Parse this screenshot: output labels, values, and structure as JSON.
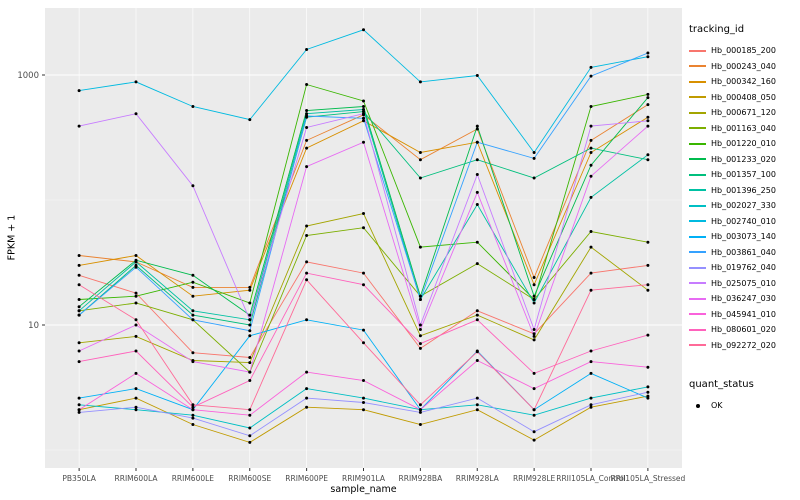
{
  "figure": {
    "background": "#FFFFFF",
    "panel_background": "#EBEBEB",
    "gridline_color": "#FFFFFF",
    "tick_color": "#333333",
    "tick_label_color": "#4D4D4D",
    "axis_title_color": "#000000"
  },
  "chart_data": {
    "type": "line",
    "title": "",
    "xlabel": "sample_name",
    "ylabel": "FPKM + 1",
    "y_scale": "log10",
    "y_ticks": [
      10,
      1000
    ],
    "y_tick_labels": [
      "10",
      "1000"
    ],
    "y_minor_gridlines": [
      1,
      100
    ],
    "y_log_domain": [
      -0.144,
      3.536
    ],
    "grid": true,
    "legend_position": "right",
    "point_color": "#000000",
    "legend": {
      "tracking_title": "tracking_id",
      "quant_title": "quant_status",
      "quant_items": [
        "OK"
      ]
    },
    "categories": [
      "PB350LA",
      "RRIM600LA",
      "RRIM600LE",
      "RRIM600SE",
      "RRIM600PE",
      "RRIM901LA",
      "RRIM928BA",
      "RRIM928LA",
      "RRIM928LE",
      "RRII105LA_Control",
      "RRII105LA_Stressed"
    ],
    "series": [
      {
        "name": "Hb_000185_200",
        "color": "#F8766D",
        "values": [
          25,
          18,
          6,
          5.5,
          32,
          26,
          6.5,
          13,
          8.5,
          26,
          30
        ]
      },
      {
        "name": "Hb_000243_040",
        "color": "#EA8331",
        "values": [
          36,
          32,
          20,
          20,
          300,
          480,
          210,
          370,
          24,
          300,
          580
        ]
      },
      {
        "name": "Hb_000342_160",
        "color": "#D89000",
        "values": [
          30,
          36,
          17,
          19,
          260,
          430,
          240,
          290,
          21,
          240,
          460
        ]
      },
      {
        "name": "Hb_000408_050",
        "color": "#C09B00",
        "values": [
          2.1,
          2.6,
          1.6,
          1.15,
          2.2,
          2.1,
          1.6,
          2.1,
          1.2,
          2.2,
          2.7
        ]
      },
      {
        "name": "Hb_000671_120",
        "color": "#A3A500",
        "values": [
          7.2,
          8.1,
          5.2,
          5,
          62,
          78,
          8.2,
          12,
          7.6,
          42,
          19
        ]
      },
      {
        "name": "Hb_001163_040",
        "color": "#7CAE00",
        "values": [
          13,
          15,
          11,
          4.2,
          52,
          60,
          17,
          31,
          16,
          56,
          46
        ]
      },
      {
        "name": "Hb_001220_010",
        "color": "#39B600",
        "values": [
          16,
          17,
          22,
          15,
          840,
          620,
          42,
          46,
          16,
          560,
          700
        ]
      },
      {
        "name": "Hb_001233_020",
        "color": "#00BB4E",
        "values": [
          14,
          33,
          25,
          12,
          520,
          560,
          17,
          390,
          17,
          190,
          660
        ]
      },
      {
        "name": "Hb_001357_100",
        "color": "#00BF7D",
        "values": [
          12,
          30,
          12,
          10,
          460,
          510,
          150,
          210,
          150,
          260,
          210
        ]
      },
      {
        "name": "Hb_001396_250",
        "color": "#00C1A3",
        "values": [
          13,
          32,
          13,
          11,
          490,
          530,
          16,
          92,
          15,
          105,
          230
        ]
      },
      {
        "name": "Hb_002027_330",
        "color": "#00BFC4",
        "values": [
          2.3,
          2.1,
          1.9,
          1.5,
          3.1,
          2.6,
          2.1,
          2.3,
          1.9,
          2.6,
          3.2
        ]
      },
      {
        "name": "Hb_002740_010",
        "color": "#00BAE0",
        "values": [
          750,
          880,
          560,
          440,
          1600,
          2300,
          880,
          990,
          240,
          1150,
          1400
        ]
      },
      {
        "name": "Hb_003073_140",
        "color": "#00B0F6",
        "values": [
          2.6,
          3.1,
          2.1,
          8.2,
          11,
          9.1,
          2.1,
          6.2,
          2.1,
          4.1,
          2.6
        ]
      },
      {
        "name": "Hb_003861_040",
        "color": "#35A2FF",
        "values": [
          12,
          29,
          11,
          9,
          470,
          450,
          16,
          290,
          215,
          980,
          1500
        ]
      },
      {
        "name": "Hb_019762_040",
        "color": "#9590FF",
        "values": [
          2,
          2.2,
          1.8,
          1.3,
          2.6,
          2.4,
          2,
          2.6,
          1.4,
          2.3,
          2.9
        ]
      },
      {
        "name": "Hb_025075_010",
        "color": "#C77CFF",
        "values": [
          390,
          490,
          130,
          11,
          380,
          490,
          10,
          160,
          9.2,
          390,
          430
        ]
      },
      {
        "name": "Hb_036247_030",
        "color": "#E76BF3",
        "values": [
          6.2,
          10,
          5.1,
          4.2,
          185,
          290,
          9.2,
          115,
          8.1,
          155,
          390
        ]
      },
      {
        "name": "Hb_045941_010",
        "color": "#FA62DB",
        "values": [
          2.1,
          4.1,
          2.1,
          1.9,
          4.2,
          3.6,
          2.1,
          5.2,
          3.1,
          5.1,
          4.6
        ]
      },
      {
        "name": "Hb_080601_020",
        "color": "#FF62BC",
        "values": [
          5.1,
          6.2,
          2.2,
          3.6,
          26,
          21,
          7.1,
          11,
          4.1,
          6.2,
          8.3
        ]
      },
      {
        "name": "Hb_092272_020",
        "color": "#FF6A98",
        "values": [
          21,
          11,
          2.3,
          2.1,
          23,
          7.2,
          2.3,
          6.1,
          2.1,
          19,
          21
        ]
      }
    ]
  }
}
